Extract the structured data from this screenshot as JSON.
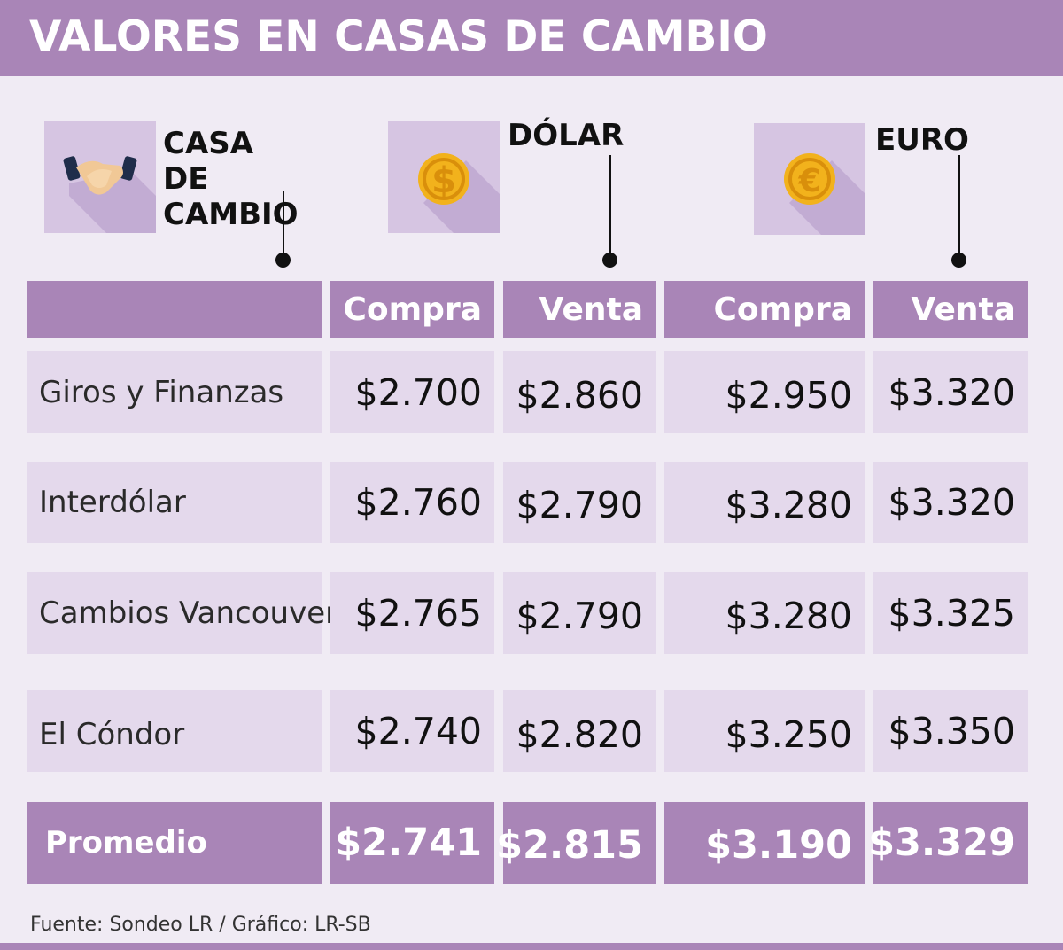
{
  "title": "VALORES EN CASAS DE CAMBIO",
  "colors": {
    "accent": "#a985b7",
    "row_fill": "#e4d9ec",
    "icon_bg": "#d6c5e2",
    "coin": "#f2b21c"
  },
  "groups": [
    {
      "label": "CASA DE CAMBIO",
      "icon": "handshake-icon"
    },
    {
      "label": "DÓLAR",
      "icon": "dollar-coin-icon"
    },
    {
      "label": "EURO",
      "icon": "euro-coin-icon"
    }
  ],
  "headers": [
    "",
    "Compra",
    "Venta",
    "Compra",
    "Venta"
  ],
  "chart_data": {
    "type": "table",
    "title": "VALORES EN CASAS DE CAMBIO",
    "column_groups": [
      "CASA DE CAMBIO",
      "DÓLAR",
      "EURO"
    ],
    "columns": [
      "Compra",
      "Venta",
      "Compra",
      "Venta"
    ],
    "rows": [
      {
        "name": "Giros y Finanzas",
        "values": [
          "$2.700",
          "$2.860",
          "$2.950",
          "$3.320"
        ]
      },
      {
        "name": "Interdólar",
        "values": [
          "$2.760",
          "$2.790",
          "$3.280",
          "$3.320"
        ]
      },
      {
        "name": "Cambios Vancouver",
        "values": [
          "$2.765",
          "$2.790",
          "$3.280",
          "$3.325"
        ]
      },
      {
        "name": "El Cóndor",
        "values": [
          "$2.740",
          "$2.820",
          "$3.250",
          "$3.350"
        ]
      }
    ],
    "average": {
      "name": "Promedio",
      "values": [
        "$2.741",
        "$2.815",
        "$3.190",
        "$3.329"
      ]
    }
  },
  "footer": "Fuente: Sondeo LR / Gráfico: LR-SB"
}
